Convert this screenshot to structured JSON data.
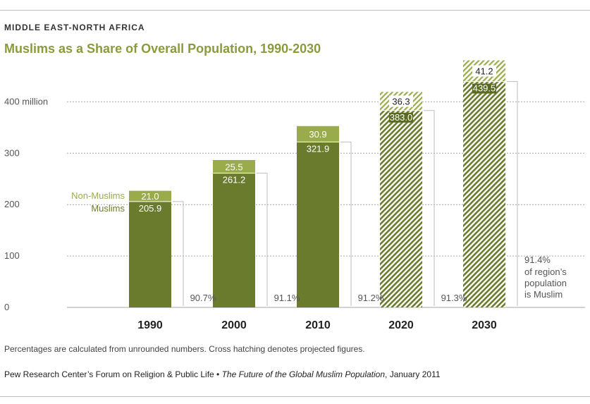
{
  "header": {
    "region": "MIDDLE EAST-NORTH AFRICA",
    "title": "Muslims as a Share of Overall Population, 1990-2030"
  },
  "colors": {
    "muslims": "#6b7b2e",
    "non_muslims": "#9aab4c",
    "title": "#8a9b3c",
    "label_dark": "#5a6a22"
  },
  "chart_data": {
    "type": "bar",
    "stacked": true,
    "categories": [
      "1990",
      "2000",
      "2010",
      "2020",
      "2030"
    ],
    "projected": [
      false,
      false,
      false,
      true,
      true
    ],
    "series": [
      {
        "name": "Muslims",
        "values": [
          205.9,
          261.2,
          321.9,
          383.0,
          439.5
        ]
      },
      {
        "name": "Non-Muslims",
        "values": [
          21.0,
          25.5,
          30.9,
          36.3,
          41.2
        ]
      }
    ],
    "muslim_share": [
      "90.7%",
      "91.1%",
      "91.2%",
      "91.3%",
      "91.4%"
    ],
    "share_note": [
      "of region’s",
      "population",
      "is Muslim"
    ],
    "value_labels": {
      "muslims": [
        "205.9",
        "261.2",
        "321.9",
        "383.0",
        "439.5"
      ],
      "non_muslims": [
        "21.0",
        "25.5",
        "30.9",
        "36.3",
        "41.2"
      ]
    },
    "y_ticks": [
      0,
      100,
      200,
      300,
      400
    ],
    "y_tick_labels": [
      "0",
      "100",
      "200",
      "300",
      "400 million"
    ],
    "ylim": [
      0,
      480
    ],
    "grid": true,
    "legend": [
      "Non-Muslims",
      "Muslims"
    ]
  },
  "footer": {
    "note": "Percentages are calculated from unrounded numbers. Cross hatching denotes projected figures.",
    "source_prefix": "Pew Research Center’s Forum on Religion & Public Life • ",
    "source_title": "The Future of the Global Muslim Population",
    "source_suffix": ", January 2011"
  }
}
